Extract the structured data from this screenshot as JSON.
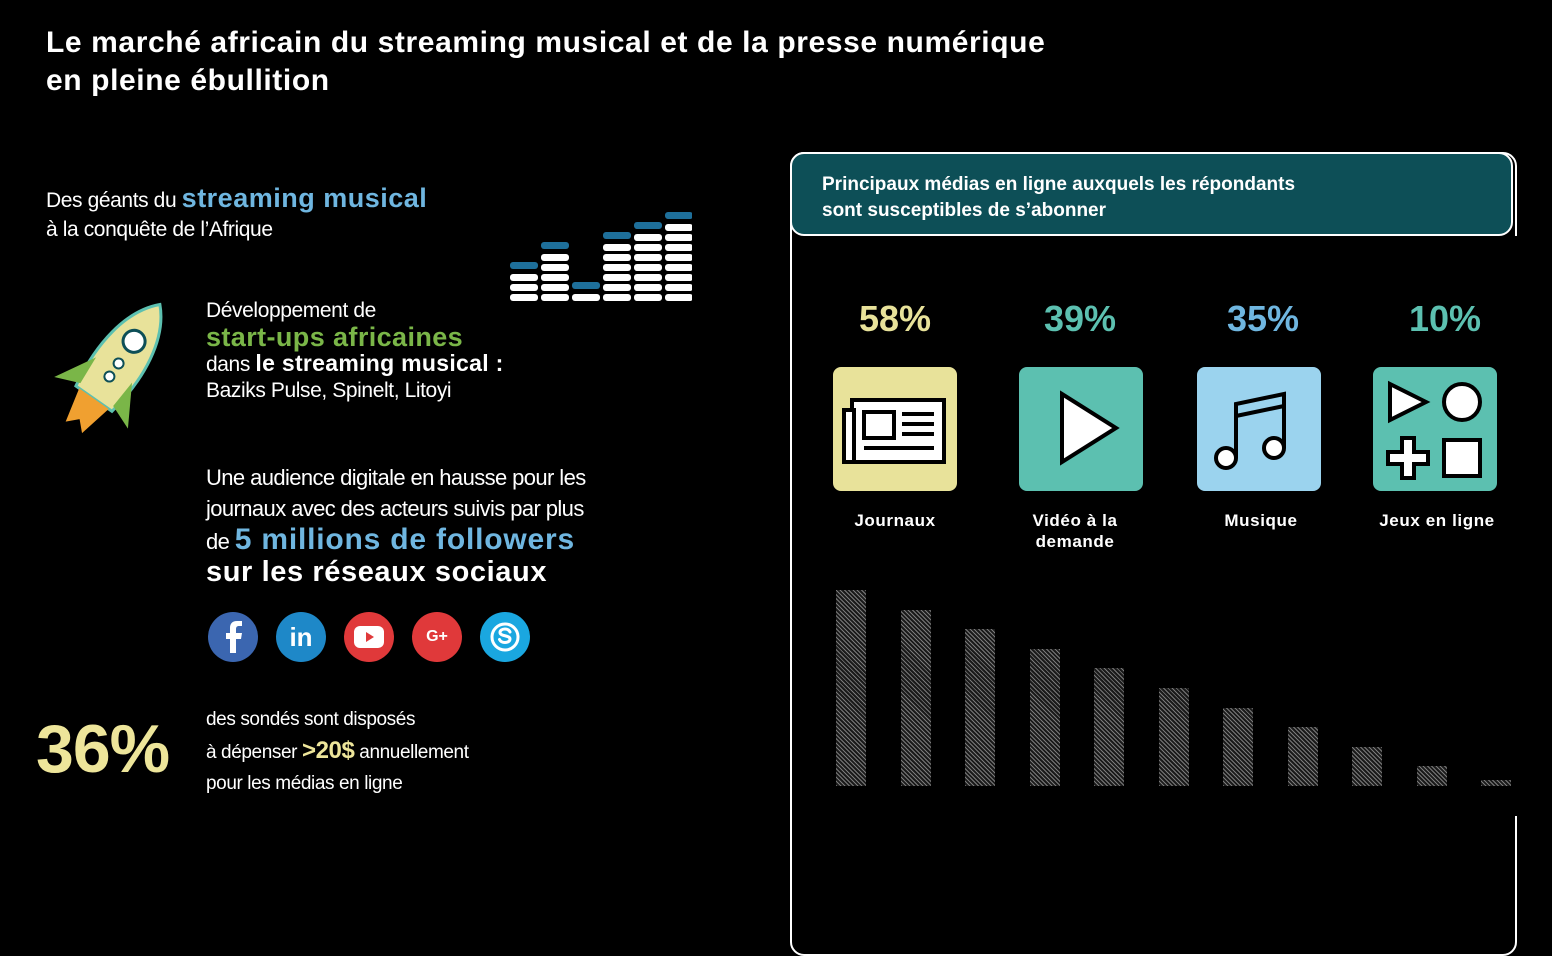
{
  "title": {
    "line1": "Le marché africain du streaming musical et de la presse numérique",
    "line2": "en pleine ébullition"
  },
  "intro": {
    "text1": "Des géants du ",
    "highlight": "streaming musical",
    "text2": "à la conquête de l’Afrique"
  },
  "startups": {
    "line1": "Développement de",
    "highlight": "start-ups africaines",
    "line3_a": "dans ",
    "line3_b": "le streaming musical :",
    "line4": "Baziks Pulse, Spinelt, Litoyi"
  },
  "audience": {
    "line1": "Une audience digitale en hausse pour  les",
    "line2": "journaux avec des acteurs suivis par  plus",
    "line3_a": "de ",
    "line3_b": "5 millions de followers",
    "line4": "sur les réseaux sociaux"
  },
  "social": {
    "icons": [
      "facebook-icon",
      "linkedin-icon",
      "youtube-icon",
      "google-plus-icon",
      "skype-icon"
    ],
    "linkedin": "in",
    "googleplus": "G+"
  },
  "spend": {
    "percent": "36%",
    "line1": "des sondés sont disposés",
    "line2_a": "à dépenser ",
    "line2_b": ">20$",
    "line2_c": " annuellement",
    "line3": "pour les médias en ligne"
  },
  "panel": {
    "title_line1": "Principaux médias en ligne auxquels les répondants",
    "title_line2": "sont susceptibles de s’abonner"
  },
  "chart_data": {
    "type": "bar",
    "categories": [
      "Journaux",
      "Vidéo à la demande",
      "Musique",
      "Jeux en ligne"
    ],
    "labels": [
      {
        "name": "Journaux",
        "line2": "",
        "percent": "58%",
        "color": "#e8e29a"
      },
      {
        "name": "Vidéo à la",
        "line2": "demande",
        "percent": "39%",
        "color": "#5cc0b0"
      },
      {
        "name": "Musique",
        "line2": "",
        "percent": "35%",
        "color": "#6fb6e0"
      },
      {
        "name": "Jeux en ligne",
        "line2": "",
        "percent": "10%",
        "color": "#5cc0b0"
      }
    ],
    "values": [
      58,
      39,
      35,
      10
    ],
    "decorative_bars": [
      10,
      9,
      8,
      7,
      6,
      5,
      4,
      3,
      2,
      1,
      0.3
    ]
  },
  "colors": {
    "background": "#000000",
    "panel_header": "#0d4f57",
    "blue": "#6fb6e0",
    "green": "#7ab648",
    "yellow": "#ede59a",
    "teal": "#5cc0b0"
  }
}
